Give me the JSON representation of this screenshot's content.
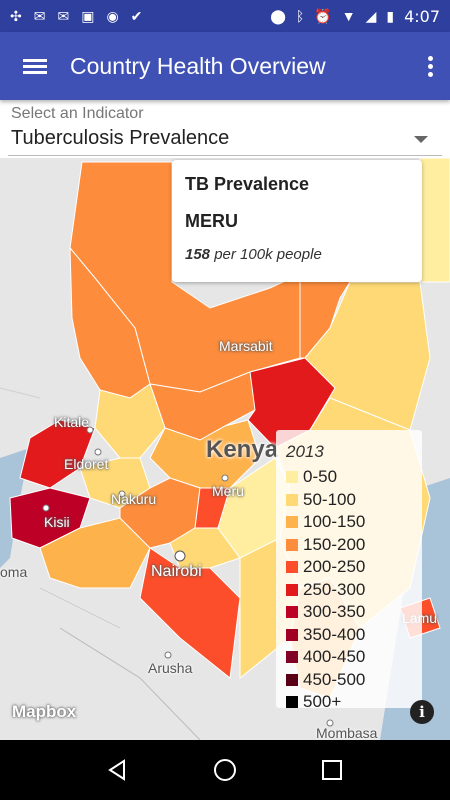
{
  "status_bar": {
    "time": "4:07",
    "left_icons": [
      "sync-icon",
      "gmail-icon",
      "gmail-icon",
      "image-icon",
      "circle-icon",
      "check-icon"
    ],
    "right_icons": [
      "location-icon",
      "bluetooth-icon",
      "alarm-icon",
      "wifi-icon",
      "signal-icon",
      "battery-icon"
    ]
  },
  "app_bar": {
    "title": "Country Health Overview"
  },
  "indicator": {
    "label": "Select an Indicator",
    "selected": "Tuberculosis Prevalence"
  },
  "popup": {
    "title": "TB Prevalence",
    "region": "MERU",
    "value": "158",
    "unit": "per 100k people"
  },
  "map": {
    "country_label": "Kenya",
    "places": [
      {
        "name": "Marsabit"
      },
      {
        "name": "Kitale"
      },
      {
        "name": "Eldoret"
      },
      {
        "name": "Nakuru"
      },
      {
        "name": "Meru"
      },
      {
        "name": "Kisii"
      },
      {
        "name": "Nairobi"
      },
      {
        "name": "Arusha"
      },
      {
        "name": "Mombasa"
      },
      {
        "name": "Lamu"
      },
      {
        "name": "oma"
      }
    ],
    "attribution": "Mapbox"
  },
  "legend": {
    "year": "2013",
    "bins": [
      {
        "label": "0-50",
        "color": "#ffeda0"
      },
      {
        "label": "50-100",
        "color": "#fed976"
      },
      {
        "label": "100-150",
        "color": "#feb24c"
      },
      {
        "label": "150-200",
        "color": "#fd8d3c"
      },
      {
        "label": "200-250",
        "color": "#fc4e2a"
      },
      {
        "label": "250-300",
        "color": "#e31a1c"
      },
      {
        "label": "300-350",
        "color": "#bd0026"
      },
      {
        "label": "350-400",
        "color": "#a00024"
      },
      {
        "label": "400-450",
        "color": "#800026"
      },
      {
        "label": "450-500",
        "color": "#5a0016"
      },
      {
        "label": "500+",
        "color": "#000000"
      }
    ]
  }
}
